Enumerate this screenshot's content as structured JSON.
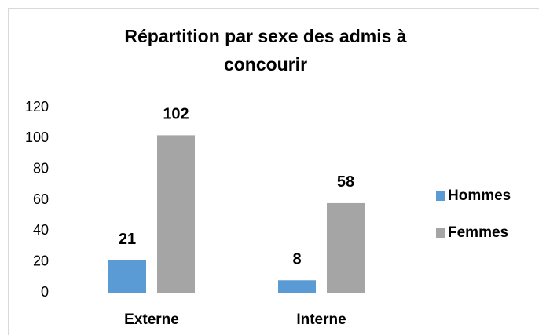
{
  "chart_data": {
    "type": "bar",
    "title": "Répartition par sexe des admis à concourir",
    "categories": [
      "Externe",
      "Interne"
    ],
    "series": [
      {
        "name": "Hommes",
        "color": "#5b9bd5",
        "values": [
          21,
          8
        ]
      },
      {
        "name": "Femmes",
        "color": "#a5a5a5",
        "values": [
          102,
          58
        ]
      }
    ],
    "ylim": [
      0,
      120
    ],
    "yticks": [
      0,
      20,
      40,
      60,
      80,
      100,
      120
    ],
    "grid": false,
    "legend": "right"
  }
}
